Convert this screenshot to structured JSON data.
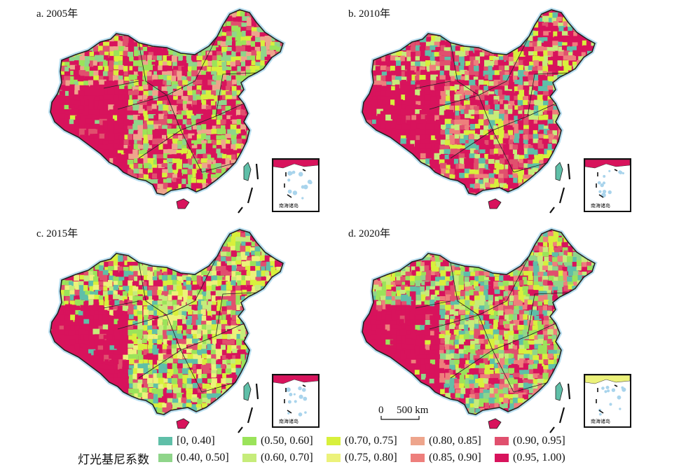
{
  "panels": [
    {
      "title": "a. 2005年",
      "dominant": [
        9,
        9,
        8,
        6,
        2,
        4,
        1
      ],
      "inset_label": "南海诸岛"
    },
    {
      "title": "b. 2010年",
      "dominant": [
        9,
        9,
        8,
        7,
        4,
        3,
        0
      ],
      "inset_label": "南海诸岛"
    },
    {
      "title": "c. 2015年",
      "dominant": [
        9,
        8,
        5,
        4,
        3,
        2,
        0
      ],
      "inset_label": "南海诸岛"
    },
    {
      "title": "d. 2020年",
      "dominant": [
        9,
        8,
        7,
        4,
        3,
        2,
        1,
        0
      ],
      "inset_label": "南海诸岛"
    }
  ],
  "scale": {
    "zero": "0",
    "distance": "500 km"
  },
  "legend": {
    "title": "灯光基尼系数",
    "items": [
      {
        "label": "[0, 0.40]",
        "color": "#5fbfa8"
      },
      {
        "label": "(0.40, 0.50]",
        "color": "#8fd58a"
      },
      {
        "label": "(0.50, 0.60]",
        "color": "#9be35a"
      },
      {
        "label": "(0.60, 0.70]",
        "color": "#c6ec7a"
      },
      {
        "label": "(0.70, 0.75]",
        "color": "#d8f03c"
      },
      {
        "label": "(0.75, 0.80]",
        "color": "#ecf27a"
      },
      {
        "label": "(0.80, 0.85]",
        "color": "#eea58c"
      },
      {
        "label": "(0.85, 0.90]",
        "color": "#ee7f7c"
      },
      {
        "label": "(0.90, 0.95]",
        "color": "#e0506e"
      },
      {
        "label": "(0.95, 1.00)",
        "color": "#d8135c"
      }
    ]
  }
}
